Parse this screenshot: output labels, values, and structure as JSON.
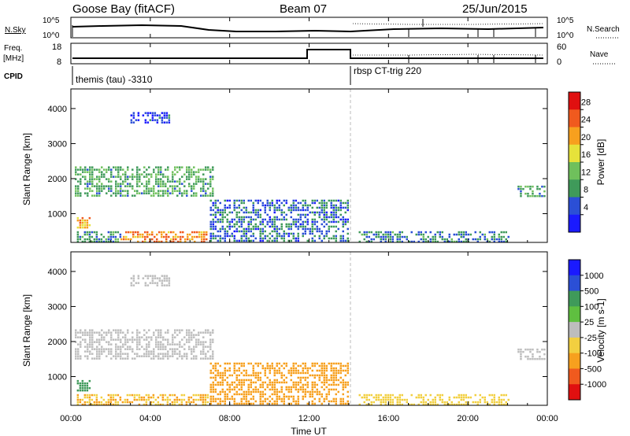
{
  "header": {
    "station": "Goose Bay (fitACF)",
    "beam": "Beam 07",
    "date": "25/Jun/2015"
  },
  "top_panels": {
    "nsky_label": "N.Sky",
    "nsky_ticks": [
      "10^5",
      "10^0"
    ],
    "nsearch_label": "N.Search",
    "nsearch_ticks": [
      "10^5",
      "10^0"
    ],
    "freq_label_1": "Freq.",
    "freq_label_2": "[MHz]",
    "freq_ticks": [
      "18",
      "8"
    ],
    "nave_label": "Nave",
    "nave_ticks": [
      "60",
      "0"
    ],
    "cpid_label": "CPID",
    "cpid_left": "themis (tau) -3310",
    "cpid_right": "rbsp CT-trig 220"
  },
  "colors": {
    "power": [
      "#1a1aff",
      "#2b4fd6",
      "#3f9a5a",
      "#6fc05c",
      "#e6e23a",
      "#f7a01e",
      "#f05a1e",
      "#e01010"
    ],
    "velocity": [
      "#e01010",
      "#f05a1e",
      "#f7a01e",
      "#f2cf40",
      "#bdbdbd",
      "#5fbf40",
      "#3f9a5a",
      "#2b4fd6",
      "#1a1aff"
    ]
  },
  "chart_data": [
    {
      "type": "heatmap",
      "name": "power",
      "xlabel": "",
      "ylabel": "Slant Range [km]",
      "ylim": [
        180,
        4560
      ],
      "yticks": [
        1000,
        2000,
        3000,
        4000
      ],
      "xlim_hours": [
        0,
        24
      ],
      "xticks": [
        "00:00",
        "04:00",
        "08:00",
        "12:00",
        "16:00",
        "20:00",
        "00:00"
      ],
      "colorbar_label": "Power [dB]",
      "colorbar_ticks": [
        "28",
        "24",
        "20",
        "16",
        "12",
        "8",
        "4"
      ],
      "colorbar_range": [
        0,
        30
      ],
      "echo_regions": [
        {
          "t0": 0.2,
          "t1": 7.2,
          "r0": 1500,
          "r1": 2350,
          "value": 11
        },
        {
          "t0": 0.3,
          "t1": 1.0,
          "r0": 600,
          "r1": 900,
          "value": 20
        },
        {
          "t0": 0.3,
          "t1": 2.5,
          "r0": 200,
          "r1": 500,
          "value": 9
        },
        {
          "t0": 2.5,
          "t1": 7.0,
          "r0": 200,
          "r1": 500,
          "value": 22
        },
        {
          "t0": 7.0,
          "t1": 14.0,
          "r0": 200,
          "r1": 1400,
          "value": 7
        },
        {
          "t0": 3.0,
          "t1": 5.0,
          "r0": 3600,
          "r1": 3900,
          "value": 4
        },
        {
          "t0": 22.5,
          "t1": 23.9,
          "r0": 1500,
          "r1": 1800,
          "value": 10
        },
        {
          "t0": 14.5,
          "t1": 22.0,
          "r0": 200,
          "r1": 500,
          "value": 8
        }
      ]
    },
    {
      "type": "heatmap",
      "name": "velocity",
      "xlabel": "Time UT",
      "ylabel": "Slant Range [km]",
      "ylim": [
        180,
        4560
      ],
      "yticks": [
        1000,
        2000,
        3000,
        4000
      ],
      "xlim_hours": [
        0,
        24
      ],
      "xticks": [
        "00:00",
        "04:00",
        "08:00",
        "12:00",
        "16:00",
        "20:00",
        "00:00"
      ],
      "colorbar_label": "Velocity [m s-1]",
      "colorbar_ticks": [
        "1000",
        "500",
        "100",
        "25",
        "-25",
        "-100",
        "-500",
        "-1000"
      ],
      "echo_regions": [
        {
          "t0": 0.2,
          "t1": 7.2,
          "r0": 1500,
          "r1": 2350,
          "value": 0
        },
        {
          "t0": 0.3,
          "t1": 1.0,
          "r0": 600,
          "r1": 900,
          "value": 150
        },
        {
          "t0": 0.3,
          "t1": 7.0,
          "r0": 200,
          "r1": 500,
          "value": -100
        },
        {
          "t0": 7.0,
          "t1": 14.0,
          "r0": 200,
          "r1": 1400,
          "value": -200
        },
        {
          "t0": 3.0,
          "t1": 5.0,
          "r0": 3600,
          "r1": 3900,
          "value": 0
        },
        {
          "t0": 22.5,
          "t1": 23.9,
          "r0": 1500,
          "r1": 1800,
          "value": 0
        },
        {
          "t0": 14.5,
          "t1": 22.0,
          "r0": 200,
          "r1": 500,
          "value": -50
        }
      ]
    }
  ]
}
